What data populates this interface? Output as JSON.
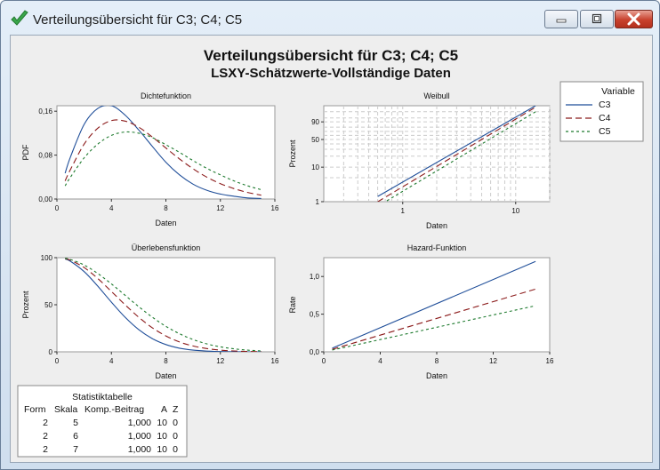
{
  "window": {
    "title": "Verteilungsübersicht für C3; C4; C5",
    "buttons": {
      "minimize": "minimize",
      "maximize": "maximize",
      "close": "close"
    }
  },
  "colors": {
    "C3": "#1f4e99",
    "C4": "#8b1a1a",
    "C5": "#1e7a2e",
    "plot_bg": "#ffffff",
    "panel_bg": "#eeeeee"
  },
  "figure": {
    "title": "Verteilungsübersicht für C3; C4; C5",
    "subtitle": "LSXY-Schätzwerte-Vollständige Daten"
  },
  "legend": {
    "title": "Variable",
    "entries": [
      "C3",
      "C4",
      "C5"
    ],
    "placement": "top-right"
  },
  "stats_table": {
    "title": "Statistiktabelle",
    "headers": [
      "Form",
      "Skala",
      "Komp.-Beitrag",
      "A",
      "Z"
    ],
    "rows": [
      [
        "2",
        "5",
        "1,000",
        "10",
        "0"
      ],
      [
        "2",
        "6",
        "1,000",
        "10",
        "0"
      ],
      [
        "2",
        "7",
        "1,000",
        "10",
        "0"
      ]
    ]
  },
  "chart_data": [
    {
      "type": "line",
      "title": "Dichtefunktion",
      "xlabel": "Daten",
      "ylabel": "PDF",
      "xlim": [
        0,
        16
      ],
      "ylim": [
        0,
        0.17
      ],
      "xticks": [
        "0",
        "4",
        "8",
        "12",
        "16"
      ],
      "yticks": [
        "0,00",
        "0,08",
        "0,16"
      ],
      "ytick_values": [
        0,
        0.08,
        0.16
      ],
      "x": [
        0.6,
        1,
        2,
        3,
        4,
        5,
        6,
        7,
        8,
        9,
        10,
        11,
        12,
        13,
        14,
        15
      ],
      "series": [
        {
          "name": "C3",
          "values": [
            0.047,
            0.077,
            0.136,
            0.165,
            0.17,
            0.153,
            0.126,
            0.096,
            0.067,
            0.044,
            0.027,
            0.016,
            0.009,
            0.005,
            0.002,
            0.001
          ]
        },
        {
          "name": "C4",
          "values": [
            0.033,
            0.054,
            0.1,
            0.129,
            0.143,
            0.142,
            0.131,
            0.113,
            0.093,
            0.073,
            0.055,
            0.04,
            0.028,
            0.019,
            0.012,
            0.007
          ]
        },
        {
          "name": "C5",
          "values": [
            0.024,
            0.04,
            0.075,
            0.1,
            0.116,
            0.122,
            0.12,
            0.112,
            0.099,
            0.085,
            0.07,
            0.056,
            0.044,
            0.033,
            0.024,
            0.017
          ]
        }
      ],
      "grid": false
    },
    {
      "type": "line",
      "title": "Weibull",
      "xlabel": "Daten",
      "ylabel": "Prozent",
      "xscale": "log",
      "xlim": [
        0.2,
        20
      ],
      "yscale": "weibull",
      "ylim": [
        1,
        99.9
      ],
      "xticks": [
        "1",
        "10"
      ],
      "xtick_values": [
        1,
        10
      ],
      "yticks": [
        "1",
        "10",
        "50",
        "90"
      ],
      "ytick_values": [
        1,
        10,
        50,
        90
      ],
      "x": [
        0.6,
        15
      ],
      "series": [
        {
          "name": "C3",
          "shape": 2,
          "scale": 5
        },
        {
          "name": "C4",
          "shape": 2,
          "scale": 6
        },
        {
          "name": "C5",
          "shape": 2,
          "scale": 7
        }
      ],
      "grid": true
    },
    {
      "type": "line",
      "title": "Überlebensfunktion",
      "xlabel": "Daten",
      "ylabel": "Prozent",
      "xlim": [
        0,
        16
      ],
      "ylim": [
        0,
        100
      ],
      "xticks": [
        "0",
        "4",
        "8",
        "12",
        "16"
      ],
      "yticks": [
        "0",
        "50",
        "100"
      ],
      "ytick_values": [
        0,
        50,
        100
      ],
      "x": [
        0.6,
        1,
        2,
        3,
        4,
        5,
        6,
        7,
        8,
        9,
        10,
        11,
        12,
        13,
        14,
        15
      ],
      "series": [
        {
          "name": "C3",
          "values": [
            98.6,
            96.1,
            85.2,
            69.8,
            52.7,
            36.8,
            23.7,
            14.1,
            7.7,
            3.9,
            1.8,
            0.8,
            0.3,
            0.1,
            0.0,
            0.0
          ]
        },
        {
          "name": "C4",
          "values": [
            99.0,
            97.3,
            89.5,
            77.9,
            64.1,
            50.0,
            36.8,
            25.6,
            16.9,
            10.5,
            6.2,
            3.5,
            1.8,
            0.9,
            0.4,
            0.2
          ]
        },
        {
          "name": "C5",
          "values": [
            99.3,
            98.0,
            92.2,
            83.2,
            72.1,
            60.1,
            48.0,
            36.8,
            27.1,
            19.2,
            13.0,
            8.5,
            5.3,
            3.2,
            1.8,
            1.0
          ]
        }
      ],
      "grid": false
    },
    {
      "type": "line",
      "title": "Hazard-Funktion",
      "xlabel": "Daten",
      "ylabel": "Rate",
      "xlim": [
        0,
        16
      ],
      "ylim": [
        0,
        1.25
      ],
      "xticks": [
        "0",
        "4",
        "8",
        "12",
        "16"
      ],
      "yticks": [
        "0,0",
        "0,5",
        "1,0"
      ],
      "ytick_values": [
        0,
        0.5,
        1.0
      ],
      "x": [
        0.6,
        15
      ],
      "series": [
        {
          "name": "C3",
          "values": [
            0.048,
            1.2
          ]
        },
        {
          "name": "C4",
          "values": [
            0.033,
            0.833
          ]
        },
        {
          "name": "C5",
          "values": [
            0.024,
            0.612
          ]
        }
      ],
      "grid": false
    }
  ]
}
